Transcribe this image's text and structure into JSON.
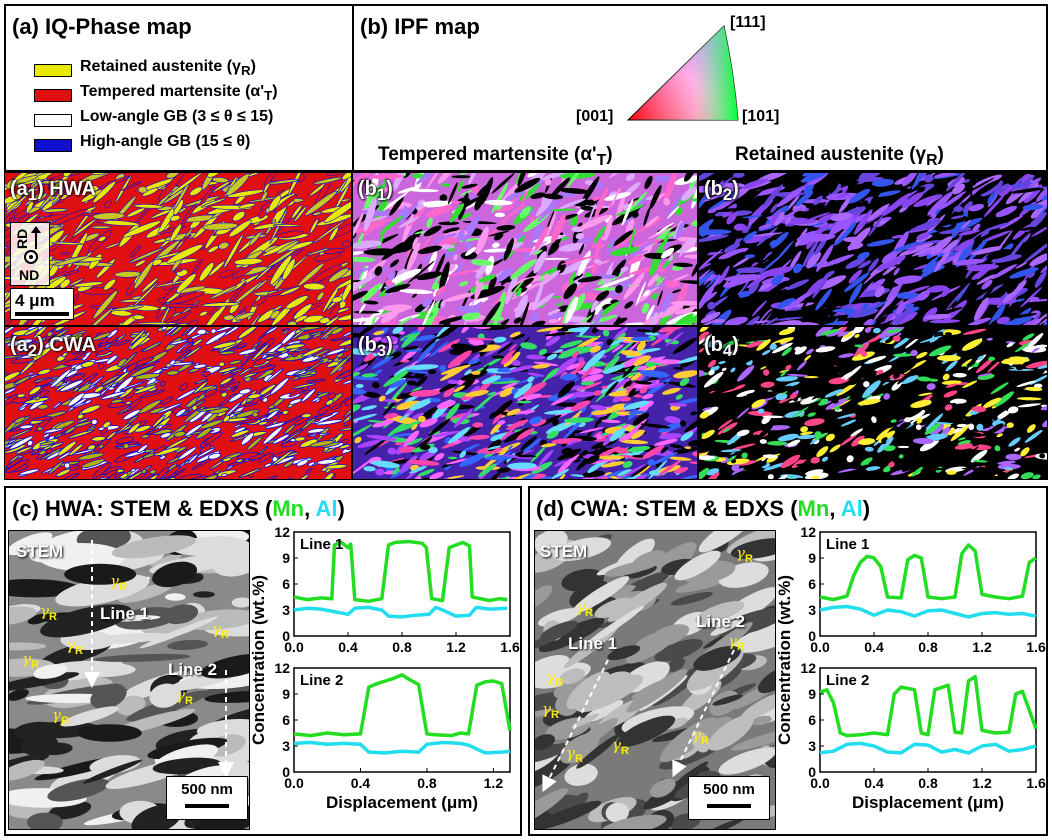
{
  "panel_a": {
    "title": "(a) IQ-Phase map",
    "legend": [
      {
        "label": "Retained austenite (γ",
        "sub": "R",
        "end": ")",
        "color": "#e8e800"
      },
      {
        "label": "Tempered martensite (α'",
        "sub": "T",
        "end": ")",
        "color": "#e01010"
      },
      {
        "label": "Low-angle GB (3 ≤ θ ≤ 15)",
        "sub": "",
        "end": "",
        "color": "#ffffff"
      },
      {
        "label": "High-angle GB (15 ≤ θ)",
        "sub": "",
        "end": "",
        "color": "#1010d0"
      }
    ],
    "a1_label": "HWA",
    "a2_label": "CWA",
    "rd": "RD",
    "nd": "ND",
    "scale": "4 μm"
  },
  "panel_b": {
    "title": "(b) IPF map",
    "corner_111": "[111]",
    "corner_001": "[001]",
    "corner_101": "[101]",
    "col1_title": "Tempered martensite (α'",
    "col1_sub": "T",
    "col2_title": "Retained austenite (γ",
    "col2_sub": "R"
  },
  "panel_c": {
    "title_pre": "(c) HWA: STEM & EDXS (",
    "mn": "Mn",
    "comma": ", ",
    "al": "Al",
    "close": ")",
    "stem": "STEM",
    "line1": "Line 1",
    "line2": "Line 2",
    "scale": "500 nm"
  },
  "panel_d": {
    "title_pre": "(d) CWA: STEM & EDXS (",
    "mn": "Mn",
    "comma": ", ",
    "al": "Al",
    "close": ")",
    "stem": "STEM",
    "line1": "Line 1",
    "line2": "Line 2",
    "scale": "500 nm"
  },
  "colors": {
    "mn": "#22dd22",
    "al": "#22ddee",
    "austenite": "#e8e800",
    "martensite": "#e01010",
    "hagb": "#1010d0"
  },
  "chart_data": [
    {
      "type": "line",
      "id": "c-line1",
      "title": "Line 1",
      "ylabel": "Concentration (wt.%)",
      "xlabel": "",
      "xlim": [
        0,
        1.6
      ],
      "ylim": [
        0,
        12
      ],
      "xticks": [
        "0.0",
        "0.4",
        "0.8",
        "1.2",
        "1.6"
      ],
      "yticks": [
        "0",
        "3",
        "6",
        "9",
        "12"
      ],
      "series": [
        {
          "name": "Mn",
          "x": [
            0,
            0.1,
            0.2,
            0.28,
            0.3,
            0.35,
            0.4,
            0.42,
            0.45,
            0.55,
            0.65,
            0.7,
            0.75,
            0.85,
            0.95,
            0.98,
            1.02,
            1.1,
            1.15,
            1.2,
            1.25,
            1.3,
            1.32,
            1.38,
            1.45,
            1.52,
            1.58
          ],
          "y": [
            4.5,
            4.2,
            4.4,
            4.3,
            10.5,
            10.8,
            10.2,
            10.6,
            4.2,
            4.0,
            4.3,
            10.5,
            10.8,
            10.9,
            10.7,
            10.2,
            4.3,
            4.1,
            10.2,
            10.5,
            10.8,
            10.4,
            4.5,
            4.3,
            4.1,
            4.3,
            4.2
          ]
        },
        {
          "name": "Al",
          "x": [
            0,
            0.1,
            0.2,
            0.3,
            0.4,
            0.45,
            0.55,
            0.65,
            0.7,
            0.8,
            0.9,
            1.0,
            1.05,
            1.1,
            1.2,
            1.3,
            1.35,
            1.45,
            1.58
          ],
          "y": [
            3.0,
            3.2,
            3.1,
            2.8,
            2.5,
            3.2,
            3.3,
            3.0,
            2.3,
            2.2,
            2.4,
            2.5,
            3.3,
            3.0,
            2.3,
            2.4,
            3.3,
            3.1,
            3.2
          ]
        }
      ]
    },
    {
      "type": "line",
      "id": "c-line2",
      "title": "Line 2",
      "ylabel": "Concentration (wt.%)",
      "xlabel": "Displacement (μm)",
      "xlim": [
        0,
        1.3
      ],
      "ylim": [
        0,
        12
      ],
      "xticks": [
        "0.0",
        "0.4",
        "0.8",
        "1.2"
      ],
      "yticks": [
        "0",
        "3",
        "6",
        "9",
        "12"
      ],
      "series": [
        {
          "name": "Mn",
          "x": [
            0,
            0.1,
            0.2,
            0.3,
            0.4,
            0.45,
            0.5,
            0.55,
            0.6,
            0.65,
            0.7,
            0.75,
            0.8,
            0.85,
            0.95,
            1.0,
            1.05,
            1.1,
            1.15,
            1.2,
            1.25,
            1.3
          ],
          "y": [
            4.4,
            4.2,
            4.5,
            4.3,
            4.4,
            9.8,
            10.2,
            10.5,
            10.8,
            11.2,
            10.6,
            10.1,
            4.4,
            4.3,
            4.2,
            4.5,
            4.4,
            10.0,
            10.4,
            10.5,
            10.2,
            4.8
          ]
        },
        {
          "name": "Al",
          "x": [
            0,
            0.1,
            0.2,
            0.3,
            0.4,
            0.45,
            0.55,
            0.65,
            0.75,
            0.8,
            0.9,
            1.0,
            1.05,
            1.15,
            1.25,
            1.3
          ],
          "y": [
            3.3,
            3.4,
            3.2,
            3.3,
            3.2,
            2.3,
            2.2,
            2.4,
            2.3,
            3.2,
            3.4,
            3.3,
            3.1,
            2.2,
            2.3,
            2.4
          ]
        }
      ]
    },
    {
      "type": "line",
      "id": "d-line1",
      "title": "Line 1",
      "ylabel": "Concentration (wt.%)",
      "xlabel": "",
      "xlim": [
        0,
        1.6
      ],
      "ylim": [
        0,
        12
      ],
      "xticks": [
        "0.0",
        "0.4",
        "0.8",
        "1.2",
        "1.6"
      ],
      "yticks": [
        "0",
        "3",
        "6",
        "9",
        "12"
      ],
      "series": [
        {
          "name": "Mn",
          "x": [
            0,
            0.1,
            0.2,
            0.25,
            0.3,
            0.35,
            0.4,
            0.45,
            0.5,
            0.6,
            0.65,
            0.7,
            0.75,
            0.8,
            0.9,
            1.0,
            1.05,
            1.1,
            1.15,
            1.2,
            1.3,
            1.4,
            1.5,
            1.55,
            1.6
          ],
          "y": [
            4.5,
            4.2,
            4.6,
            7.0,
            8.5,
            9.2,
            9.0,
            8.0,
            4.5,
            4.4,
            8.8,
            9.3,
            9.0,
            4.5,
            4.3,
            4.5,
            9.5,
            10.5,
            9.8,
            4.8,
            4.5,
            4.3,
            4.6,
            8.5,
            9.0
          ]
        },
        {
          "name": "Al",
          "x": [
            0,
            0.1,
            0.2,
            0.3,
            0.4,
            0.5,
            0.6,
            0.7,
            0.8,
            0.9,
            1.0,
            1.1,
            1.2,
            1.3,
            1.4,
            1.5,
            1.6
          ],
          "y": [
            3.0,
            3.3,
            3.4,
            3.1,
            2.4,
            3.0,
            2.8,
            2.3,
            2.9,
            3.0,
            2.6,
            2.2,
            2.6,
            2.7,
            2.5,
            2.6,
            2.3
          ]
        }
      ]
    },
    {
      "type": "line",
      "id": "d-line2",
      "title": "Line 2",
      "ylabel": "Concentration (wt.%)",
      "xlabel": "Displacement (μm)",
      "xlim": [
        0,
        1.6
      ],
      "ylim": [
        0,
        12
      ],
      "xticks": [
        "0.0",
        "0.4",
        "0.8",
        "1.2",
        "1.6"
      ],
      "yticks": [
        "0",
        "3",
        "6",
        "9",
        "12"
      ],
      "series": [
        {
          "name": "Mn",
          "x": [
            0,
            0.05,
            0.1,
            0.15,
            0.2,
            0.3,
            0.4,
            0.5,
            0.55,
            0.6,
            0.7,
            0.75,
            0.8,
            0.85,
            0.95,
            1.0,
            1.05,
            1.1,
            1.15,
            1.2,
            1.3,
            1.4,
            1.45,
            1.5,
            1.6
          ],
          "y": [
            9.2,
            9.5,
            8.0,
            4.5,
            4.2,
            4.3,
            4.5,
            4.3,
            9.0,
            9.8,
            9.5,
            4.5,
            4.3,
            9.5,
            10.0,
            4.6,
            4.5,
            10.5,
            11.0,
            4.8,
            4.5,
            4.6,
            9.0,
            9.3,
            5.0
          ]
        },
        {
          "name": "Al",
          "x": [
            0,
            0.1,
            0.2,
            0.3,
            0.4,
            0.5,
            0.6,
            0.7,
            0.8,
            0.9,
            1.0,
            1.1,
            1.2,
            1.3,
            1.4,
            1.5,
            1.6
          ],
          "y": [
            2.2,
            2.4,
            3.2,
            3.3,
            3.0,
            2.3,
            2.2,
            3.2,
            3.1,
            2.3,
            2.6,
            2.2,
            3.0,
            3.2,
            2.4,
            2.6,
            3.0
          ]
        }
      ]
    }
  ]
}
